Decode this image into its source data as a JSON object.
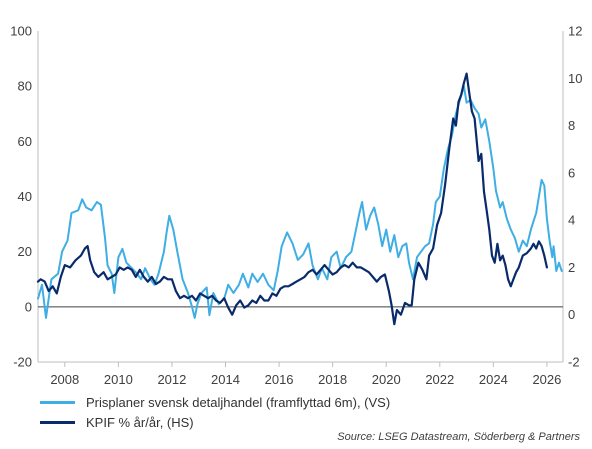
{
  "chart_data": {
    "type": "line",
    "title": "",
    "xlabel": "",
    "ylabel_left": "",
    "ylabel_right": "",
    "xlim": [
      2007.0,
      2026.6
    ],
    "ylim_left": [
      -20,
      100
    ],
    "ylim_right": [
      -2,
      12
    ],
    "x_ticks": [
      2008,
      2010,
      2012,
      2014,
      2016,
      2018,
      2020,
      2022,
      2024,
      2026
    ],
    "y_left_ticks": [
      -20,
      0,
      20,
      40,
      60,
      80,
      100
    ],
    "y_right_ticks": [
      -2,
      0,
      2,
      4,
      6,
      8,
      10,
      12
    ],
    "grid": false,
    "zero_line": true,
    "legend_position": "bottom-left",
    "series": [
      {
        "name": "Prisplaner svensk detaljhandel (framflyttad 6m), (VS)",
        "axis": "left",
        "color": "#3EAEE4",
        "points": [
          [
            2007.0,
            3
          ],
          [
            2007.15,
            8
          ],
          [
            2007.3,
            -4
          ],
          [
            2007.5,
            10
          ],
          [
            2007.75,
            12
          ],
          [
            2007.9,
            20
          ],
          [
            2008.1,
            24
          ],
          [
            2008.25,
            34
          ],
          [
            2008.5,
            35
          ],
          [
            2008.65,
            39
          ],
          [
            2008.8,
            36
          ],
          [
            2009.0,
            35
          ],
          [
            2009.2,
            38
          ],
          [
            2009.35,
            37
          ],
          [
            2009.5,
            25
          ],
          [
            2009.6,
            15
          ],
          [
            2009.75,
            12
          ],
          [
            2009.85,
            5
          ],
          [
            2010.0,
            18
          ],
          [
            2010.15,
            21
          ],
          [
            2010.3,
            16
          ],
          [
            2010.5,
            14
          ],
          [
            2010.7,
            12
          ],
          [
            2010.85,
            10
          ],
          [
            2011.0,
            14
          ],
          [
            2011.2,
            10
          ],
          [
            2011.35,
            8
          ],
          [
            2011.5,
            12
          ],
          [
            2011.7,
            20
          ],
          [
            2011.8,
            27
          ],
          [
            2011.9,
            33
          ],
          [
            2012.05,
            28
          ],
          [
            2012.2,
            20
          ],
          [
            2012.4,
            10
          ],
          [
            2012.6,
            5
          ],
          [
            2012.75,
            0
          ],
          [
            2012.85,
            -4
          ],
          [
            2012.95,
            1
          ],
          [
            2013.1,
            5
          ],
          [
            2013.3,
            7
          ],
          [
            2013.4,
            -3
          ],
          [
            2013.55,
            5
          ],
          [
            2013.75,
            1
          ],
          [
            2013.95,
            3
          ],
          [
            2014.1,
            8
          ],
          [
            2014.3,
            5
          ],
          [
            2014.5,
            8
          ],
          [
            2014.65,
            12
          ],
          [
            2014.85,
            7
          ],
          [
            2015.0,
            12
          ],
          [
            2015.2,
            9
          ],
          [
            2015.4,
            12
          ],
          [
            2015.6,
            8
          ],
          [
            2015.8,
            6
          ],
          [
            2015.95,
            13
          ],
          [
            2016.1,
            22
          ],
          [
            2016.3,
            27
          ],
          [
            2016.5,
            23
          ],
          [
            2016.7,
            17
          ],
          [
            2016.9,
            19
          ],
          [
            2017.1,
            23
          ],
          [
            2017.25,
            15
          ],
          [
            2017.45,
            10
          ],
          [
            2017.6,
            14
          ],
          [
            2017.8,
            10
          ],
          [
            2017.95,
            18
          ],
          [
            2018.15,
            20
          ],
          [
            2018.3,
            14
          ],
          [
            2018.5,
            18
          ],
          [
            2018.7,
            20
          ],
          [
            2018.85,
            27
          ],
          [
            2019.0,
            34
          ],
          [
            2019.1,
            38
          ],
          [
            2019.25,
            28
          ],
          [
            2019.4,
            33
          ],
          [
            2019.55,
            36
          ],
          [
            2019.7,
            30
          ],
          [
            2019.85,
            22
          ],
          [
            2020.0,
            28
          ],
          [
            2020.15,
            20
          ],
          [
            2020.3,
            26
          ],
          [
            2020.45,
            18
          ],
          [
            2020.6,
            22
          ],
          [
            2020.75,
            23
          ],
          [
            2020.85,
            16
          ],
          [
            2021.0,
            10
          ],
          [
            2021.15,
            18
          ],
          [
            2021.3,
            20
          ],
          [
            2021.45,
            22
          ],
          [
            2021.6,
            23
          ],
          [
            2021.75,
            30
          ],
          [
            2021.85,
            38
          ],
          [
            2022.0,
            40
          ],
          [
            2022.15,
            50
          ],
          [
            2022.3,
            57
          ],
          [
            2022.45,
            62
          ],
          [
            2022.6,
            70
          ],
          [
            2022.75,
            75
          ],
          [
            2022.9,
            80
          ],
          [
            2023.0,
            74
          ],
          [
            2023.15,
            75
          ],
          [
            2023.3,
            72
          ],
          [
            2023.45,
            70
          ],
          [
            2023.55,
            65
          ],
          [
            2023.7,
            68
          ],
          [
            2023.85,
            60
          ],
          [
            2024.0,
            50
          ],
          [
            2024.1,
            42
          ],
          [
            2024.25,
            36
          ],
          [
            2024.35,
            38
          ],
          [
            2024.5,
            32
          ],
          [
            2024.65,
            28
          ],
          [
            2024.8,
            25
          ],
          [
            2024.95,
            20
          ],
          [
            2025.1,
            24
          ],
          [
            2025.25,
            22
          ],
          [
            2025.4,
            28
          ],
          [
            2025.5,
            31
          ],
          [
            2025.6,
            34
          ],
          [
            2025.7,
            40
          ],
          [
            2025.8,
            46
          ],
          [
            2025.9,
            44
          ],
          [
            2026.0,
            32
          ],
          [
            2026.1,
            24
          ],
          [
            2026.2,
            18
          ],
          [
            2026.25,
            22
          ],
          [
            2026.35,
            13
          ],
          [
            2026.45,
            16
          ],
          [
            2026.55,
            13
          ]
        ]
      },
      {
        "name": "KPIF % år/år, (HS)",
        "axis": "right",
        "color": "#0A2B6B",
        "points": [
          [
            2007.0,
            1.4
          ],
          [
            2007.1,
            1.5
          ],
          [
            2007.25,
            1.4
          ],
          [
            2007.4,
            1.0
          ],
          [
            2007.55,
            1.2
          ],
          [
            2007.7,
            0.9
          ],
          [
            2007.85,
            1.6
          ],
          [
            2008.0,
            2.1
          ],
          [
            2008.2,
            2.0
          ],
          [
            2008.4,
            2.3
          ],
          [
            2008.6,
            2.5
          ],
          [
            2008.75,
            2.8
          ],
          [
            2008.85,
            2.9
          ],
          [
            2008.95,
            2.3
          ],
          [
            2009.1,
            1.8
          ],
          [
            2009.25,
            1.6
          ],
          [
            2009.45,
            1.8
          ],
          [
            2009.6,
            1.5
          ],
          [
            2009.75,
            1.6
          ],
          [
            2009.9,
            1.7
          ],
          [
            2010.05,
            2.0
          ],
          [
            2010.2,
            1.9
          ],
          [
            2010.35,
            2.0
          ],
          [
            2010.5,
            1.9
          ],
          [
            2010.65,
            1.6
          ],
          [
            2010.8,
            1.9
          ],
          [
            2010.95,
            1.6
          ],
          [
            2011.1,
            1.4
          ],
          [
            2011.25,
            1.6
          ],
          [
            2011.4,
            1.3
          ],
          [
            2011.55,
            1.4
          ],
          [
            2011.7,
            1.6
          ],
          [
            2011.85,
            1.5
          ],
          [
            2012.0,
            1.5
          ],
          [
            2012.15,
            1.0
          ],
          [
            2012.3,
            0.7
          ],
          [
            2012.45,
            0.8
          ],
          [
            2012.6,
            0.7
          ],
          [
            2012.75,
            0.8
          ],
          [
            2012.9,
            0.6
          ],
          [
            2013.05,
            0.9
          ],
          [
            2013.2,
            0.8
          ],
          [
            2013.35,
            0.7
          ],
          [
            2013.5,
            0.8
          ],
          [
            2013.65,
            0.6
          ],
          [
            2013.8,
            0.5
          ],
          [
            2013.95,
            0.7
          ],
          [
            2014.1,
            0.3
          ],
          [
            2014.25,
            0.0
          ],
          [
            2014.4,
            0.4
          ],
          [
            2014.55,
            0.6
          ],
          [
            2014.7,
            0.3
          ],
          [
            2014.85,
            0.4
          ],
          [
            2015.0,
            0.6
          ],
          [
            2015.15,
            0.5
          ],
          [
            2015.3,
            0.8
          ],
          [
            2015.45,
            0.6
          ],
          [
            2015.6,
            0.6
          ],
          [
            2015.75,
            0.9
          ],
          [
            2015.9,
            0.8
          ],
          [
            2016.05,
            1.1
          ],
          [
            2016.2,
            1.2
          ],
          [
            2016.35,
            1.2
          ],
          [
            2016.5,
            1.3
          ],
          [
            2016.65,
            1.4
          ],
          [
            2016.8,
            1.5
          ],
          [
            2016.95,
            1.6
          ],
          [
            2017.1,
            1.8
          ],
          [
            2017.25,
            1.9
          ],
          [
            2017.4,
            1.7
          ],
          [
            2017.55,
            1.9
          ],
          [
            2017.7,
            2.1
          ],
          [
            2017.85,
            1.9
          ],
          [
            2018.0,
            1.7
          ],
          [
            2018.15,
            1.8
          ],
          [
            2018.3,
            2.0
          ],
          [
            2018.45,
            2.1
          ],
          [
            2018.6,
            2.0
          ],
          [
            2018.75,
            2.2
          ],
          [
            2018.9,
            2.0
          ],
          [
            2019.05,
            2.0
          ],
          [
            2019.2,
            1.9
          ],
          [
            2019.35,
            1.8
          ],
          [
            2019.5,
            1.6
          ],
          [
            2019.65,
            1.4
          ],
          [
            2019.8,
            1.6
          ],
          [
            2019.95,
            1.7
          ],
          [
            2020.1,
            1.0
          ],
          [
            2020.2,
            0.4
          ],
          [
            2020.3,
            -0.4
          ],
          [
            2020.4,
            0.2
          ],
          [
            2020.55,
            0.0
          ],
          [
            2020.7,
            0.5
          ],
          [
            2020.85,
            0.4
          ],
          [
            2020.95,
            0.4
          ],
          [
            2021.05,
            1.5
          ],
          [
            2021.2,
            2.2
          ],
          [
            2021.35,
            1.9
          ],
          [
            2021.5,
            1.5
          ],
          [
            2021.6,
            2.5
          ],
          [
            2021.75,
            2.8
          ],
          [
            2021.9,
            3.8
          ],
          [
            2022.05,
            4.3
          ],
          [
            2022.2,
            5.5
          ],
          [
            2022.35,
            7.0
          ],
          [
            2022.5,
            8.3
          ],
          [
            2022.6,
            8.0
          ],
          [
            2022.7,
            9.0
          ],
          [
            2022.8,
            9.3
          ],
          [
            2022.9,
            9.8
          ],
          [
            2023.0,
            10.2
          ],
          [
            2023.1,
            9.4
          ],
          [
            2023.2,
            8.6
          ],
          [
            2023.3,
            8.3
          ],
          [
            2023.45,
            6.5
          ],
          [
            2023.55,
            6.8
          ],
          [
            2023.65,
            5.2
          ],
          [
            2023.75,
            4.4
          ],
          [
            2023.85,
            3.6
          ],
          [
            2023.95,
            2.5
          ],
          [
            2024.05,
            2.2
          ],
          [
            2024.15,
            3.0
          ],
          [
            2024.25,
            2.3
          ],
          [
            2024.35,
            2.5
          ],
          [
            2024.45,
            2.1
          ],
          [
            2024.55,
            1.5
          ],
          [
            2024.65,
            1.2
          ],
          [
            2024.75,
            1.5
          ],
          [
            2024.85,
            1.8
          ],
          [
            2024.95,
            2.0
          ],
          [
            2025.1,
            2.5
          ],
          [
            2025.25,
            2.6
          ],
          [
            2025.4,
            2.8
          ],
          [
            2025.5,
            3.0
          ],
          [
            2025.6,
            2.8
          ],
          [
            2025.7,
            3.1
          ],
          [
            2025.8,
            2.9
          ],
          [
            2025.9,
            2.5
          ],
          [
            2026.0,
            2.0
          ]
        ]
      }
    ]
  },
  "source_text": "Source: LSEG Datastream, Söderberg & Partners"
}
